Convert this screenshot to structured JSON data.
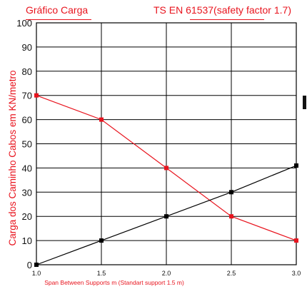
{
  "header": {
    "title_left": "Gráfico Carga",
    "title_right": "TS EN 61537(safety factor 1.7)"
  },
  "chart_data": {
    "type": "line",
    "title": "Gráfico Carga",
    "subtitle": "TS EN 61537(safety factor 1.7)",
    "xlabel": "Span Between Supports m (Standart support 1.5 m)",
    "ylabel": "Carga dos Caminho Cabos em KN/metro",
    "xlim": [
      1.0,
      3.0
    ],
    "ylim": [
      0,
      100
    ],
    "x_ticks": [
      "1.0",
      "1.5",
      "2.0",
      "2.5",
      "3.0"
    ],
    "y_ticks": [
      "0",
      "10",
      "20",
      "30",
      "40",
      "50",
      "60",
      "70",
      "80",
      "90",
      "100"
    ],
    "grid": true,
    "series": [
      {
        "color": "#e8141e",
        "marker": "square",
        "x": [
          1.0,
          1.5,
          2.0,
          2.5,
          3.0
        ],
        "y": [
          70,
          60,
          40,
          20,
          10
        ]
      },
      {
        "color": "#000000",
        "marker": "square",
        "x": [
          1.0,
          1.5,
          2.0,
          2.5,
          3.0
        ],
        "y": [
          0,
          10,
          20,
          30,
          41
        ]
      }
    ]
  }
}
